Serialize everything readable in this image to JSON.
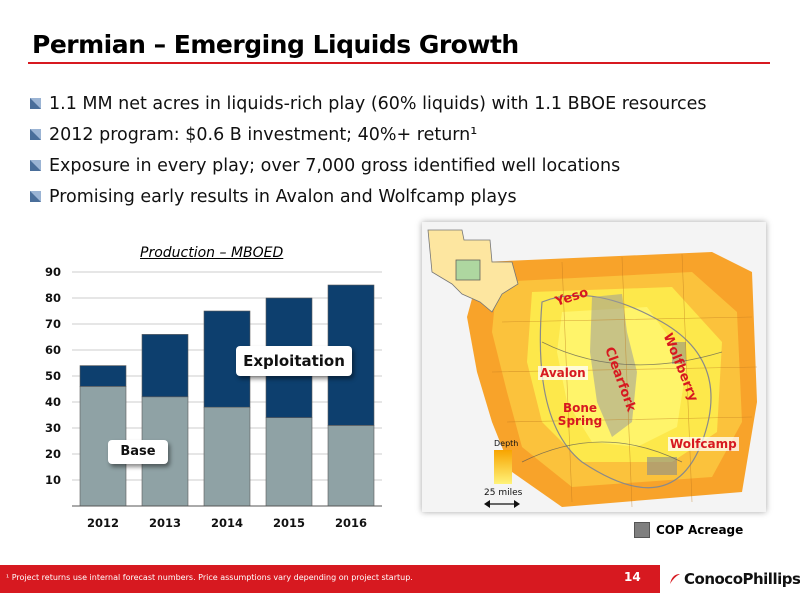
{
  "slide": {
    "title": "Permian – Emerging Liquids Growth",
    "page_number": "14",
    "footnote": "¹ Project returns use internal forecast numbers. Price assumptions vary depending on project startup.",
    "logo_text": "ConocoPhillips",
    "accent_color": "#d71920"
  },
  "bullets": [
    "1.1 MM net acres in liquids-rich play (60% liquids) with 1.1 BBOE resources",
    "2012 program: $0.6 B investment; 40%+ return¹",
    "Exposure in every play; over 7,000 gross identified well locations",
    "Promising early results in Avalon and Wolfcamp plays"
  ],
  "callouts": {
    "exploitation": "Exploitation",
    "base": "Base"
  },
  "map": {
    "labels": {
      "yeso": "Yeso",
      "avalon": "Avalon",
      "clearfork": "Clearfork",
      "wolfberry": "Wolfberry",
      "bone_spring": "Bone Spring",
      "wolfcamp": "Wolfcamp"
    },
    "depth_label": "Depth",
    "scale_label": "25 miles",
    "legend_label": "COP Acreage"
  },
  "chart_data": {
    "type": "bar",
    "stacked": true,
    "title": "Production – MBOED",
    "categories": [
      "2012",
      "2013",
      "2014",
      "2015",
      "2016"
    ],
    "series": [
      {
        "name": "Base",
        "color": "#8fa2a5",
        "values": [
          46,
          42,
          38,
          34,
          31
        ]
      },
      {
        "name": "Exploitation",
        "color": "#0d3f6e",
        "values": [
          8,
          24,
          37,
          46,
          54
        ]
      }
    ],
    "yticks": [
      10,
      20,
      30,
      40,
      50,
      60,
      70,
      80,
      90
    ],
    "ylim": [
      0,
      90
    ],
    "grid": "horizontal",
    "legend": "callouts"
  }
}
